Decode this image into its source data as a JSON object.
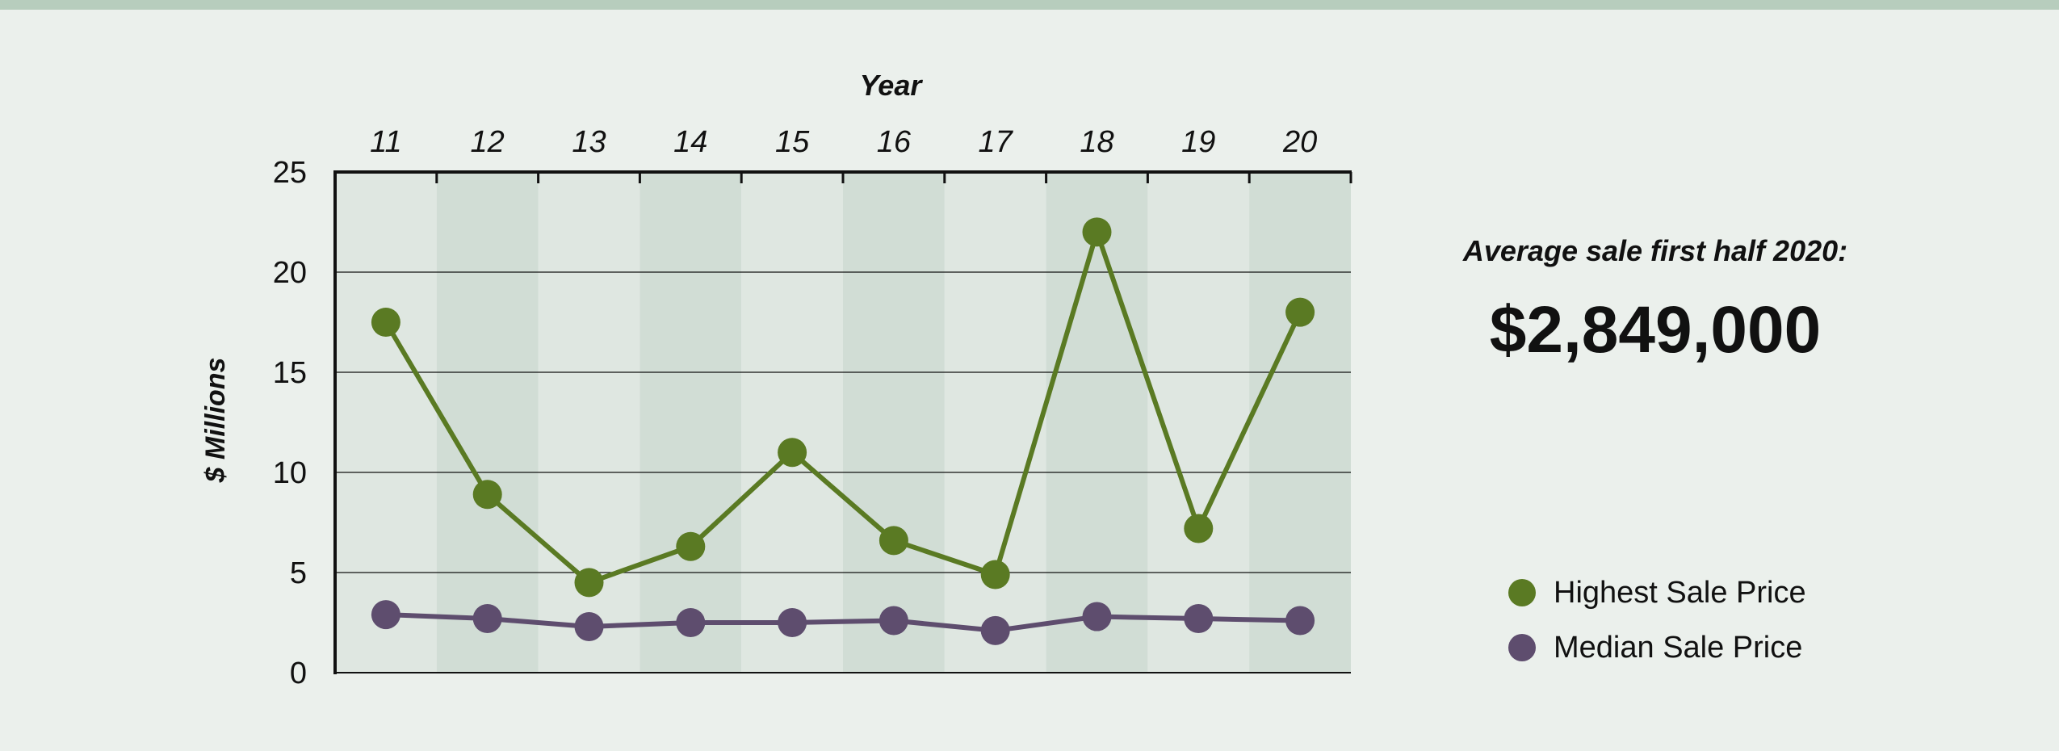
{
  "chart_data": {
    "type": "line",
    "xlabel": "Year",
    "ylabel": "$ Millions",
    "categories": [
      "11",
      "12",
      "13",
      "14",
      "15",
      "16",
      "17",
      "18",
      "19",
      "20"
    ],
    "yticks": [
      "0",
      "5",
      "10",
      "15",
      "20",
      "25"
    ],
    "ylim": [
      0,
      25
    ],
    "grid": true,
    "legend_position": "right",
    "series": [
      {
        "name": "Highest Sale Price",
        "color": "#5a7a23",
        "values": [
          17.5,
          8.9,
          4.5,
          6.3,
          11.0,
          6.6,
          4.9,
          22.0,
          7.2,
          18.0
        ]
      },
      {
        "name": "Median Sale Price",
        "color": "#5e4d6e",
        "values": [
          2.9,
          2.7,
          2.3,
          2.5,
          2.5,
          2.6,
          2.1,
          2.8,
          2.7,
          2.6
        ]
      }
    ]
  },
  "callout": {
    "label": "Average sale first half 2020:",
    "value": "$2,849,000"
  },
  "colors": {
    "background": "#ebf0ec",
    "band_light": "#dfe7e1",
    "band_dark": "#d1ddd5",
    "top_bar": "#b7cdbd"
  }
}
